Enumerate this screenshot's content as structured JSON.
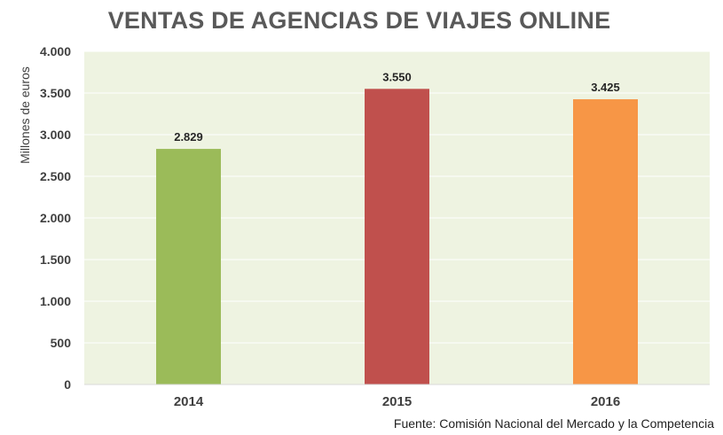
{
  "chart_data": {
    "type": "bar",
    "title": "VENTAS DE AGENCIAS DE VIAJES ONLINE",
    "ylabel": "Millones de euros",
    "xlabel": "",
    "categories": [
      "2014",
      "2015",
      "2016"
    ],
    "values": [
      2829,
      3550,
      3425
    ],
    "value_labels": [
      "2.829",
      "3.550",
      "3.425"
    ],
    "bar_colors": [
      "#9bbb59",
      "#c0504d",
      "#f79646"
    ],
    "plot_background": "#eef3e1",
    "ylim": [
      0,
      4000
    ],
    "y_ticks": [
      0,
      500,
      1000,
      1500,
      2000,
      2500,
      3000,
      3500,
      4000
    ],
    "y_tick_labels": [
      "0",
      "500",
      "1.000",
      "1.500",
      "2.000",
      "2.500",
      "3.000",
      "3.500",
      "4.000"
    ],
    "grid": true
  },
  "source": "Fuente: Comisión Nacional del Mercado y la Competencia"
}
